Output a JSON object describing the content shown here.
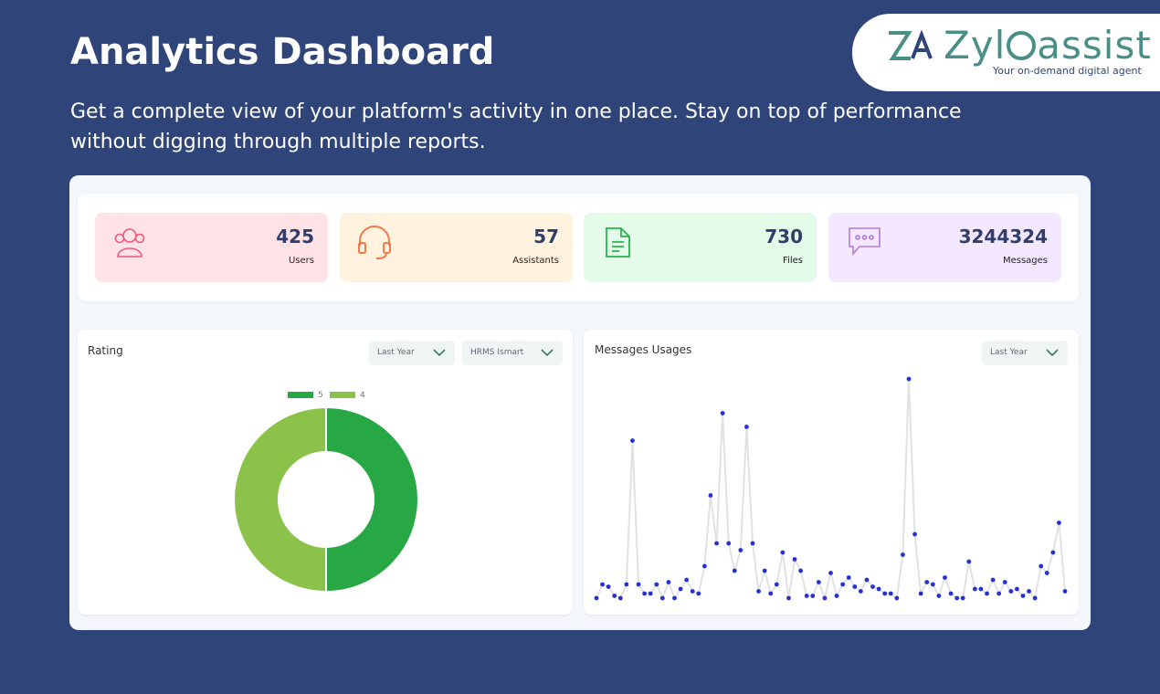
{
  "header": {
    "title": "Analytics Dashboard",
    "subtitle": "Get a complete view of your platform's activity in one place. Stay on top of performance without digging through multiple reports."
  },
  "logo": {
    "name_start": "Zyl",
    "name_end": "assist",
    "tagline": "Your on-demand digital agent"
  },
  "stats": [
    {
      "value": 425,
      "label": "Users"
    },
    {
      "value": 57,
      "label": "Assistants"
    },
    {
      "value": 730,
      "label": "Files"
    },
    {
      "value": 3244324,
      "label": "Messages"
    }
  ],
  "chart_data": [
    {
      "type": "pie",
      "title": "Rating",
      "filters": [
        "Last Year",
        "HRMS Ismart"
      ],
      "donut": true,
      "legend": "top",
      "categories": [
        "5",
        "4"
      ],
      "values": [
        50,
        50
      ],
      "colors": [
        "#28a745",
        "#8bc34a"
      ]
    },
    {
      "type": "line",
      "title": "Messages Usages",
      "filters": [
        "Last Year"
      ],
      "color": "#e2e2e2",
      "marker_color": "#2630d4",
      "ylim": [
        0,
        100
      ],
      "values": [
        2,
        8,
        7,
        3,
        2,
        8,
        71,
        8,
        4,
        4,
        8,
        2,
        9,
        2,
        6,
        10,
        5,
        4,
        16,
        47,
        26,
        83,
        26,
        14,
        23,
        77,
        26,
        5,
        14,
        4,
        8,
        22,
        2,
        19,
        14,
        3,
        3,
        9,
        2,
        13,
        3,
        8,
        11,
        7,
        5,
        10,
        7,
        6,
        4,
        4,
        2,
        21,
        98,
        30,
        4,
        9,
        8,
        3,
        11,
        4,
        2,
        2,
        18,
        6,
        6,
        4,
        10,
        4,
        9,
        5,
        6,
        3,
        5,
        2,
        16,
        13,
        22,
        35,
        5
      ]
    }
  ]
}
